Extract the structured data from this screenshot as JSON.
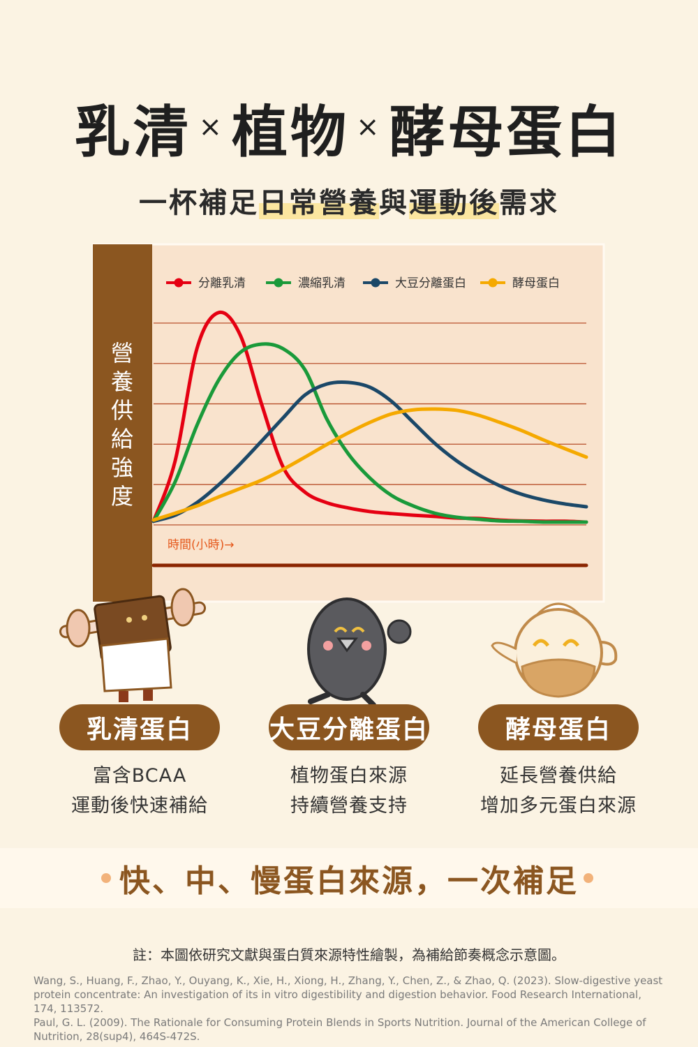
{
  "header": {
    "title": [
      "乳清",
      "×",
      "植物",
      "×",
      "酵母蛋白"
    ],
    "subtitle": [
      "一杯補足",
      "日常營養",
      "與",
      "運動後",
      "需求"
    ]
  },
  "chart_data": {
    "type": "line",
    "y_label": "營養供給強度",
    "x_label": "時間(小時)→",
    "x": [
      0,
      0.5,
      1,
      1.5,
      2,
      2.5,
      3,
      3.5,
      4,
      4.5,
      5,
      5.5,
      6,
      6.5,
      7,
      7.5,
      8,
      8.5,
      9,
      9.5,
      10
    ],
    "xlim": [
      0,
      10
    ],
    "ylim": [
      0,
      5.5
    ],
    "yticks": [
      0,
      1,
      2,
      3,
      4,
      5
    ],
    "grid": true,
    "series": [
      {
        "name": "分離乳清",
        "color": "#e50012",
        "values": [
          0.09,
          1.59,
          4.36,
          5.26,
          4.71,
          2.98,
          1.42,
          0.81,
          0.55,
          0.42,
          0.33,
          0.28,
          0.24,
          0.21,
          0.17,
          0.16,
          0.12,
          0.1,
          0.09,
          0.09,
          0.07
        ]
      },
      {
        "name": "濃縮乳清",
        "color": "#1a9a3a",
        "values": [
          0.09,
          1.07,
          2.46,
          3.58,
          4.27,
          4.48,
          4.36,
          3.84,
          2.63,
          1.76,
          1.16,
          0.73,
          0.47,
          0.29,
          0.19,
          0.14,
          0.1,
          0.09,
          0.07,
          0.07,
          0.07
        ]
      },
      {
        "name": "大豆分離蛋白",
        "color": "#1b4868",
        "values": [
          0.09,
          0.24,
          0.55,
          0.99,
          1.51,
          2.08,
          2.66,
          3.22,
          3.49,
          3.53,
          3.41,
          3.06,
          2.54,
          2.02,
          1.59,
          1.25,
          0.97,
          0.76,
          0.62,
          0.52,
          0.45
        ]
      },
      {
        "name": "酵母蛋白",
        "color": "#f5a900",
        "values": [
          0.12,
          0.29,
          0.47,
          0.69,
          0.9,
          1.11,
          1.38,
          1.68,
          1.99,
          2.28,
          2.54,
          2.75,
          2.85,
          2.87,
          2.84,
          2.72,
          2.54,
          2.34,
          2.11,
          1.89,
          1.68
        ]
      }
    ]
  },
  "products": [
    {
      "name": "乳清蛋白",
      "lines": [
        "富含BCAA",
        "運動後快速補給"
      ]
    },
    {
      "name": "大豆分離蛋白",
      "lines": [
        "植物蛋白來源",
        "持續營養支持"
      ]
    },
    {
      "name": "酵母蛋白",
      "lines": [
        "延長營養供給",
        "增加多元蛋白來源"
      ]
    }
  ],
  "banner": "快、中、慢蛋白來源，一次補足",
  "note": "註：本圖依研究文獻與蛋白質來源特性繪製，為補給節奏概念示意圖。",
  "references": [
    "Wang, S., Huang, F., Zhao, Y., Ouyang, K., Xie, H., Xiong, H., Zhang, Y., Chen, Z., & Zhao, Q. (2023). Slow-digestive yeast protein concentrate: An investigation of its in vitro digestibility and digestion behavior. Food Research International, 174, 113572.",
    "Paul, G. L. (2009). The Rationale for Consuming Protein Blends in Sports Nutrition. Journal of the American College of Nutrition, 28(sup4), 464S-472S."
  ]
}
